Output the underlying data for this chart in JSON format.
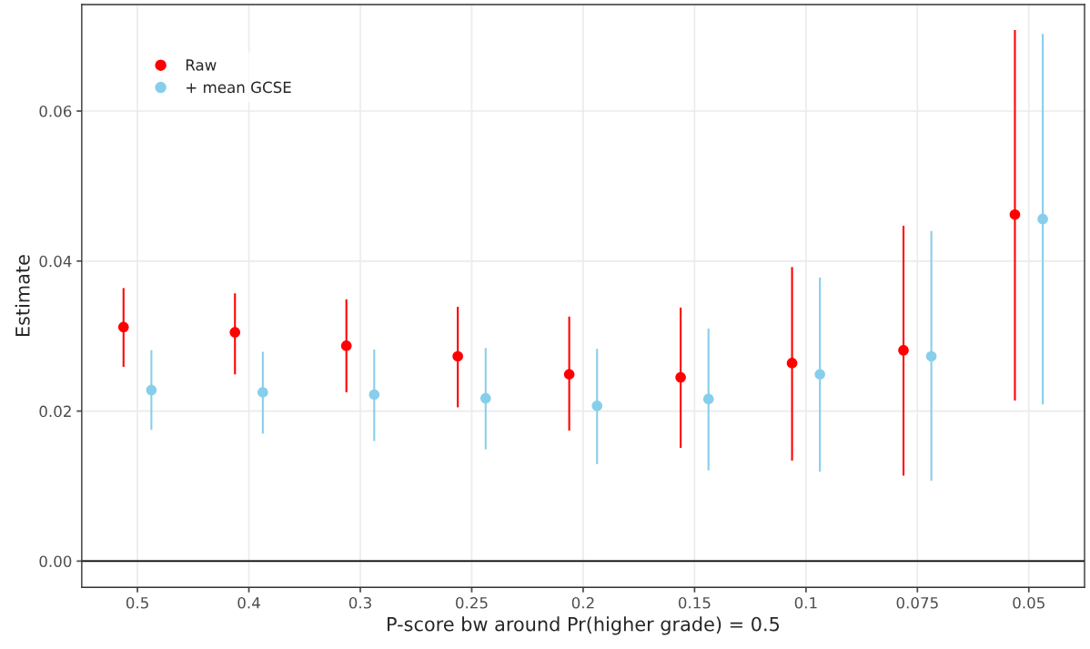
{
  "chart_data": {
    "type": "scatter",
    "xlabel": "P-score bw around Pr(higher grade) = 0.5",
    "ylabel": "Estimate",
    "categories": [
      "0.5",
      "0.4",
      "0.3",
      "0.25",
      "0.2",
      "0.15",
      "0.1",
      "0.075",
      "0.05"
    ],
    "series": [
      {
        "name": "Raw",
        "color": "#ff0000",
        "values": [
          0.0312,
          0.0305,
          0.0287,
          0.0273,
          0.0249,
          0.0245,
          0.0264,
          0.0281,
          0.0462
        ],
        "errors": [
          [
            0.0259,
            0.0364
          ],
          [
            0.0249,
            0.0357
          ],
          [
            0.0225,
            0.0349
          ],
          [
            0.0205,
            0.0339
          ],
          [
            0.0174,
            0.0326
          ],
          [
            0.0151,
            0.0338
          ],
          [
            0.0134,
            0.0392
          ],
          [
            0.0114,
            0.0447
          ],
          [
            0.0214,
            0.0708
          ]
        ]
      },
      {
        "name": "+ mean GCSE",
        "color": "#87ceeb",
        "values": [
          0.0228,
          0.0225,
          0.0222,
          0.0217,
          0.0207,
          0.0216,
          0.0249,
          0.0273,
          0.0456
        ],
        "errors": [
          [
            0.0175,
            0.0281
          ],
          [
            0.017,
            0.0279
          ],
          [
            0.016,
            0.0282
          ],
          [
            0.0149,
            0.0284
          ],
          [
            0.0129,
            0.0283
          ],
          [
            0.0121,
            0.031
          ],
          [
            0.0119,
            0.0378
          ],
          [
            0.0107,
            0.044
          ],
          [
            0.0209,
            0.0703
          ]
        ]
      }
    ],
    "ylim": [
      -0.0035,
      0.0742
    ],
    "yticks": [
      {
        "value": 0,
        "label": "0.00"
      },
      {
        "value": 0.02,
        "label": "0.02"
      },
      {
        "value": 0.04,
        "label": "0.04"
      },
      {
        "value": 0.06,
        "label": "0.06"
      }
    ],
    "ref_lines": [
      {
        "axis": "y",
        "value": 0,
        "color": "#000000"
      }
    ],
    "grid": true,
    "legend": "top left",
    "marker": "circle"
  }
}
